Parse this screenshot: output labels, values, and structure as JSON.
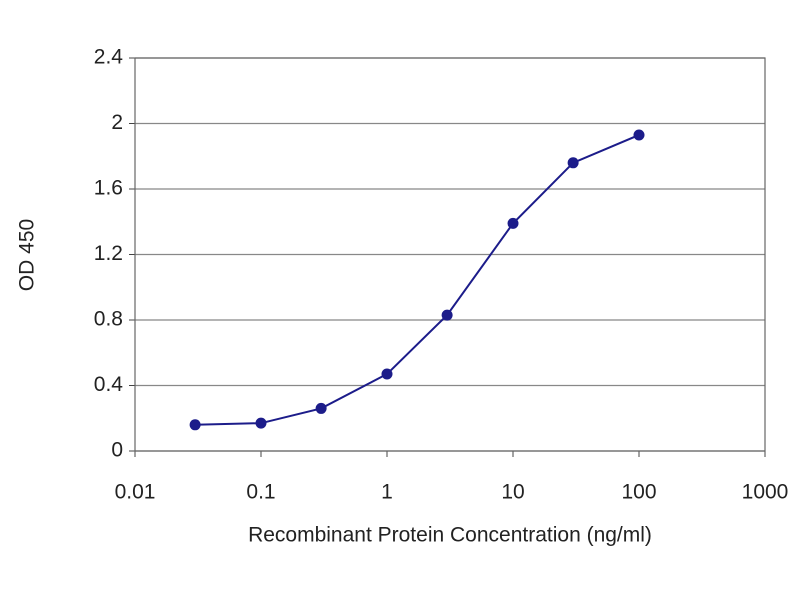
{
  "chart_data": {
    "type": "line",
    "x_label": "Recombinant Protein Concentration (ng/ml)",
    "y_label": "OD 450",
    "x": [
      0.03,
      0.1,
      0.3,
      1,
      3,
      10,
      30,
      100
    ],
    "series": [
      {
        "color": "#1c1c8a",
        "values": [
          0.16,
          0.17,
          0.26,
          0.47,
          0.83,
          1.39,
          1.76,
          1.93
        ]
      }
    ],
    "xlim": [
      0.01,
      1000
    ],
    "xticks": [
      0.01,
      0.1,
      1,
      10,
      100,
      1000
    ],
    "xscale": "log",
    "ylim": [
      0,
      2.4
    ],
    "yticks": [
      0,
      0.4,
      0.8,
      1.2,
      1.6,
      2,
      2.4
    ],
    "grid": true
  }
}
